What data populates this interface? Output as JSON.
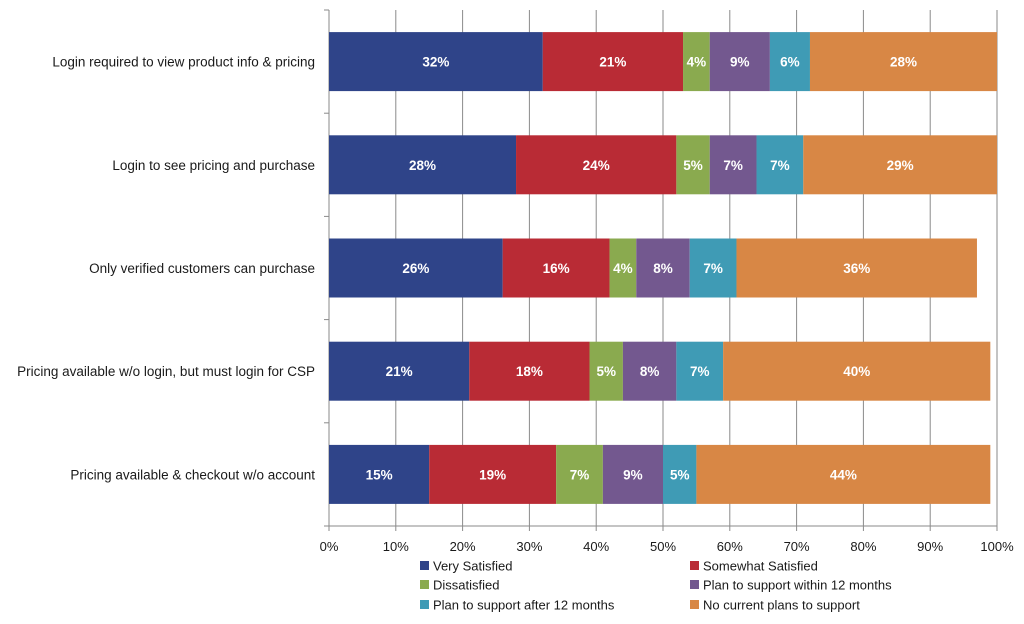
{
  "chart_data": {
    "type": "bar",
    "orientation": "horizontal",
    "stacked": true,
    "categories": [
      "Login required to view product info & pricing",
      "Login to see pricing and purchase",
      "Only verified customers can purchase",
      "Pricing available w/o login, but must login for CSP",
      "Pricing available & checkout w/o account"
    ],
    "series": [
      {
        "name": "Very Satisfied",
        "color": "#2f4489",
        "values": [
          32,
          28,
          26,
          21,
          15
        ]
      },
      {
        "name": "Somewhat Satisfied",
        "color": "#b92b35",
        "values": [
          21,
          24,
          16,
          18,
          19
        ]
      },
      {
        "name": "Dissatisfied",
        "color": "#8aaa4f",
        "values": [
          4,
          5,
          4,
          5,
          7
        ]
      },
      {
        "name": "Plan to support within 12 months",
        "color": "#73588f",
        "values": [
          9,
          7,
          8,
          8,
          9
        ]
      },
      {
        "name": "Plan to support after 12 months",
        "color": "#3f9bb5",
        "values": [
          6,
          7,
          7,
          7,
          5
        ]
      },
      {
        "name": "No current plans to support",
        "color": "#d88745",
        "values": [
          28,
          29,
          36,
          40,
          44
        ]
      }
    ],
    "xlim": [
      0,
      100
    ],
    "x_ticks": [
      "0%",
      "10%",
      "20%",
      "30%",
      "40%",
      "50%",
      "60%",
      "70%",
      "80%",
      "90%",
      "100%"
    ],
    "value_suffix": "%",
    "grid": "vertical",
    "legend_position": "bottom"
  }
}
